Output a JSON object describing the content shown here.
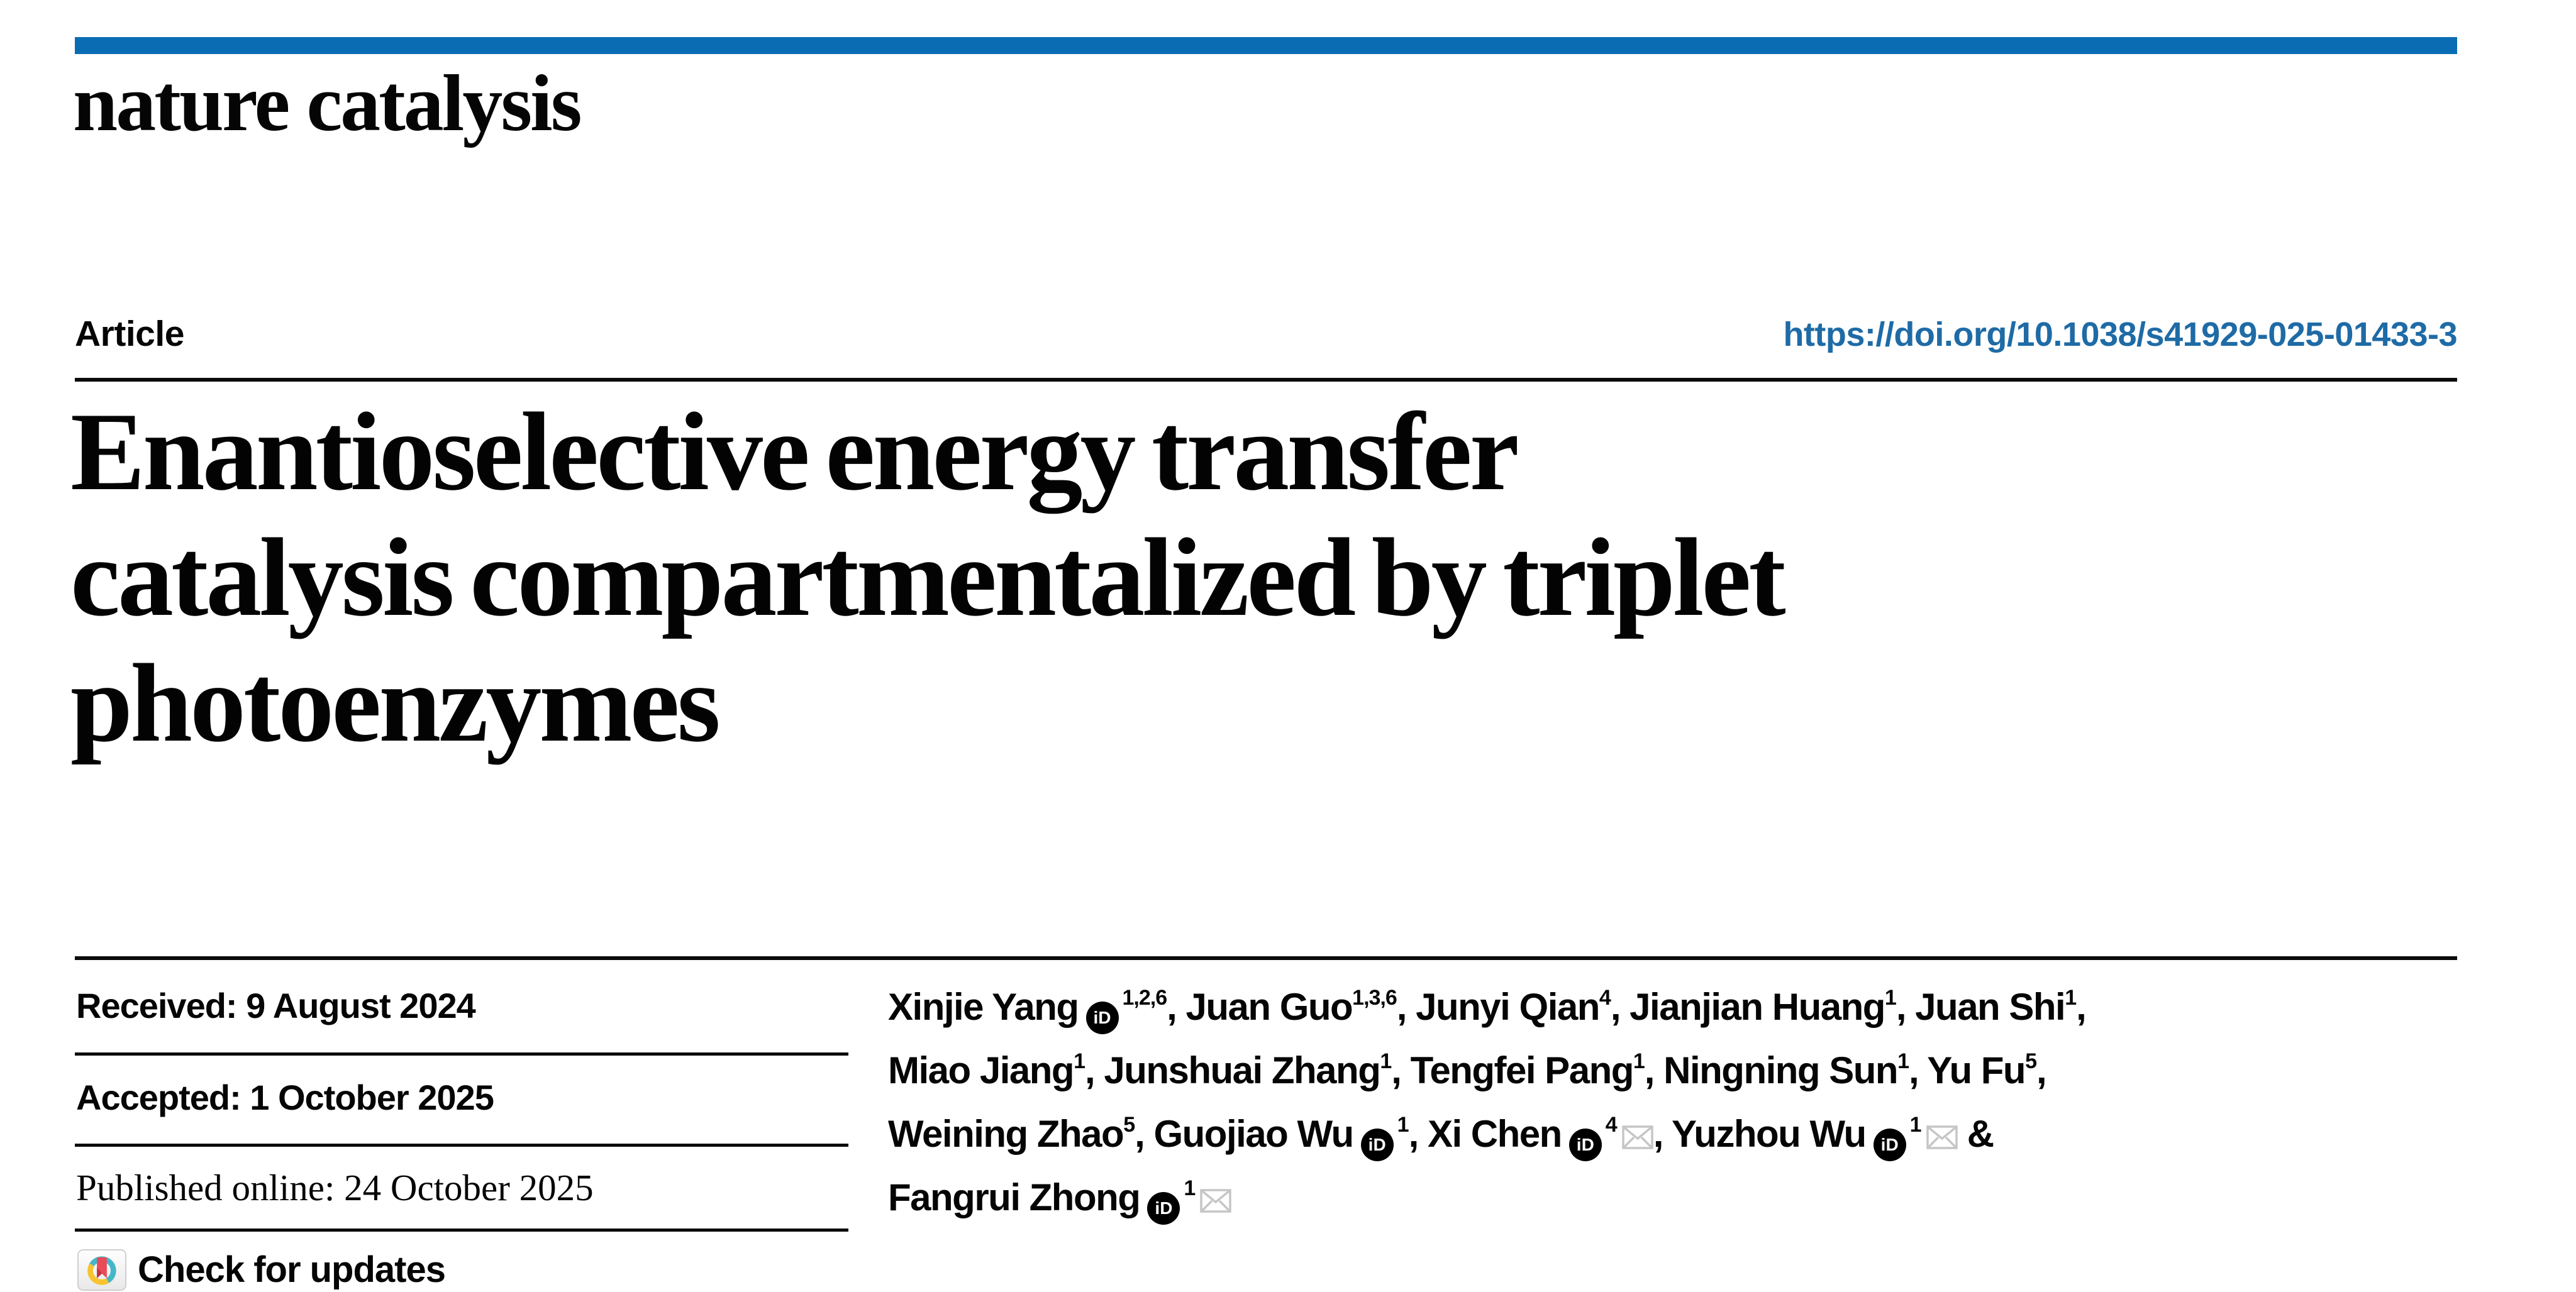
{
  "journal": {
    "name": "nature catalysis"
  },
  "header": {
    "article_label": "Article",
    "doi": "https://doi.org/10.1038/s41929-025-01433-3"
  },
  "title": {
    "lines": [
      "Enantioselective energy transfer",
      "catalysis compartmentalized by triplet",
      "photoenzymes"
    ]
  },
  "dates": {
    "received": "Received: 9 August 2024",
    "accepted": "Accepted: 1 October 2025",
    "published": "Published online: 24 October 2025"
  },
  "check_for_updates": {
    "label": "Check for updates"
  },
  "authors": {
    "lines": [
      [
        {
          "name": "Xinjie Yang",
          "orcid": true,
          "sup": "1,2,6",
          "env": false,
          "sep": ", "
        },
        {
          "name": "Juan Guo",
          "orcid": false,
          "sup": "1,3,6",
          "env": false,
          "sep": ", "
        },
        {
          "name": "Junyi Qian",
          "orcid": false,
          "sup": "4",
          "env": false,
          "sep": ", "
        },
        {
          "name": "Jianjian Huang",
          "orcid": false,
          "sup": "1",
          "env": false,
          "sep": ", "
        },
        {
          "name": "Juan Shi",
          "orcid": false,
          "sup": "1",
          "env": false,
          "sep": ","
        }
      ],
      [
        {
          "name": "Miao Jiang",
          "orcid": false,
          "sup": "1",
          "env": false,
          "sep": ", "
        },
        {
          "name": "Junshuai Zhang",
          "orcid": false,
          "sup": "1",
          "env": false,
          "sep": ", "
        },
        {
          "name": "Tengfei Pang",
          "orcid": false,
          "sup": "1",
          "env": false,
          "sep": ", "
        },
        {
          "name": "Ningning Sun",
          "orcid": false,
          "sup": "1",
          "env": false,
          "sep": ", "
        },
        {
          "name": "Yu Fu",
          "orcid": false,
          "sup": "5",
          "env": false,
          "sep": ","
        }
      ],
      [
        {
          "name": "Weining Zhao",
          "orcid": false,
          "sup": "5",
          "env": false,
          "sep": ", "
        },
        {
          "name": "Guojiao Wu",
          "orcid": true,
          "sup": "1",
          "env": false,
          "sep": ", "
        },
        {
          "name": "Xi Chen",
          "orcid": true,
          "sup": "4",
          "env": true,
          "sep": ", "
        },
        {
          "name": "Yuzhou Wu",
          "orcid": true,
          "sup": "1",
          "env": true,
          "sep": " &"
        }
      ],
      [
        {
          "name": "Fangrui Zhong",
          "orcid": true,
          "sup": "1",
          "env": true,
          "sep": ""
        }
      ]
    ]
  },
  "icons": {
    "orcid_label": "iD",
    "orcid_name": "orcid-icon",
    "envelope_name": "envelope-icon",
    "crossmark_name": "crossmark-icon"
  },
  "colors": {
    "accent_bar_blue": "#0a6db4",
    "doi_link_blue": "#1e6ba6",
    "text_black": "#050505",
    "envelope_gray": "#c6c6c6",
    "crossmark_teal": "#45b6c8",
    "crossmark_yellow": "#f7c331",
    "crossmark_red": "#e94b58",
    "crossmark_dark_red": "#c2323e"
  }
}
